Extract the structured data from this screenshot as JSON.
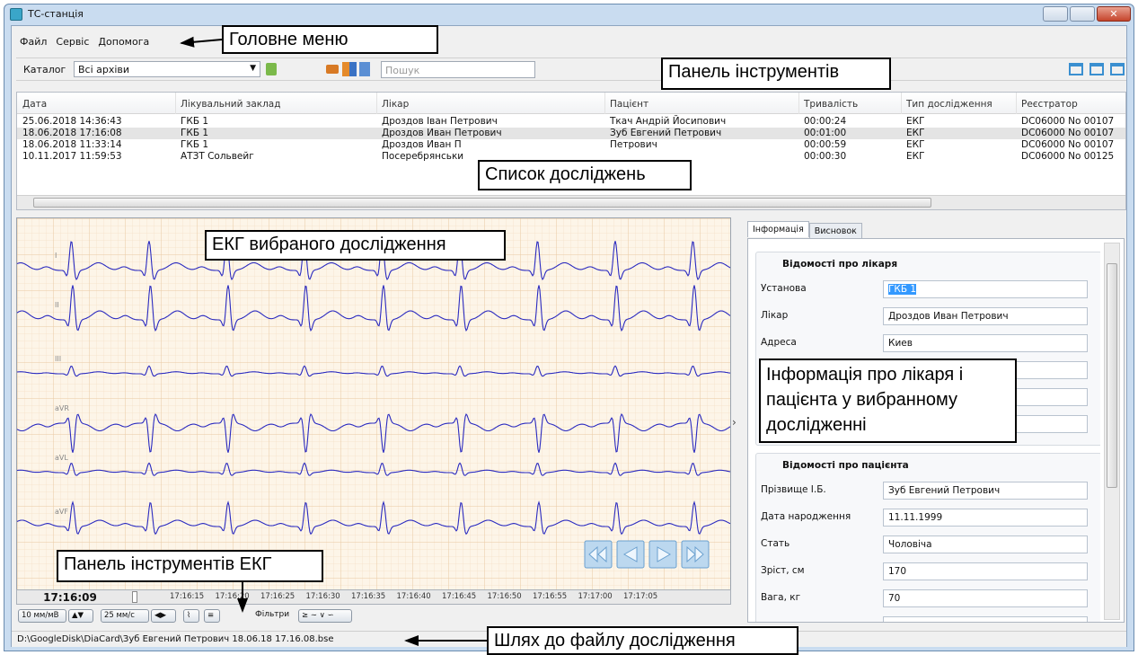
{
  "window": {
    "title": "ТС-станція"
  },
  "menu": [
    "Файл",
    "Сервіс",
    "Допомога"
  ],
  "toolbar": {
    "catalog_label": "Каталог",
    "catalog_value": "Всі архіви",
    "search_placeholder": "Пошук"
  },
  "table": {
    "headers": [
      "Дата",
      "Лікувальний заклад",
      "Лікар",
      "Пацієнт",
      "Тривалість",
      "Тип дослідження",
      "Реєстратор"
    ],
    "rows": [
      [
        "25.06.2018 14:36:43",
        "ГКБ 1",
        "Дроздов Іван Петрович",
        "Ткач Андрій Йосипович",
        "00:00:24",
        "ЕКГ",
        "DC06000 No 00107"
      ],
      [
        "18.06.2018 17:16:08",
        "ГКБ 1",
        "Дроздов Иван Петрович",
        "Зуб Евгений Петрович",
        "00:01:00",
        "ЕКГ",
        "DC06000 No 00107"
      ],
      [
        "18.06.2018 11:33:14",
        "ГКБ 1",
        "Дроздов Иван П",
        "Петрович",
        "00:00:59",
        "ЕКГ",
        "DC06000 No 00107"
      ],
      [
        "10.11.2017 11:59:53",
        "АТЗТ Сольвейг",
        "Посеребрянськи",
        null,
        "00:00:30",
        "ЕКГ",
        "DC06000 No 00125"
      ]
    ]
  },
  "ecg": {
    "leads": [
      "I",
      "II",
      "III",
      "aVR",
      "aVL",
      "aVF"
    ],
    "current_time": "17:16:09",
    "time_ticks": [
      "17:16:15",
      "17:16:20",
      "17:16:25",
      "17:16:30",
      "17:16:35",
      "17:16:40",
      "17:16:45",
      "17:16:50",
      "17:16:55",
      "17:17:00",
      "17:17:05"
    ],
    "controls": {
      "gain": "10 мм/мВ",
      "speed": "25 мм/с",
      "filters": "Фільтри"
    }
  },
  "info_panel": {
    "tabs": [
      "Інформація",
      "Висновок"
    ],
    "doctor_section": {
      "title": "Відомості про лікаря",
      "fields": [
        {
          "label": "Установа",
          "value": "ГКБ 1"
        },
        {
          "label": "Лікар",
          "value": "Дроздов Иван Петрович"
        },
        {
          "label": "Адреса",
          "value": "Киев"
        }
      ]
    },
    "patient_section": {
      "title": "Відомості про пацієнта",
      "fields": [
        {
          "label": "Прізвище І.Б.",
          "value": "Зуб Евгений Петрович"
        },
        {
          "label": "Дата народження",
          "value": "11.11.1999"
        },
        {
          "label": "Стать",
          "value": "Чоловіча"
        },
        {
          "label": "Зріст, см",
          "value": "170"
        },
        {
          "label": "Вага, кг",
          "value": "70"
        }
      ]
    }
  },
  "status_bar": {
    "path": "D:\\GoogleDisk\\DiaCard\\Зуб Евгений Петрович 18.06.18 17.16.08.bse"
  },
  "annotations": {
    "main_menu": "Головне меню",
    "toolbar": "Панель інструментів",
    "study_list": "Список досліджень",
    "ecg_view": "ЕКГ вибраного дослідження",
    "info": [
      "Інформація про лікаря і",
      "пацієнта у вибранному",
      "дослідженні"
    ],
    "ecg_toolbar": "Панель інструментів ЕКГ",
    "file_path": "Шлях до файлу дослідження"
  }
}
